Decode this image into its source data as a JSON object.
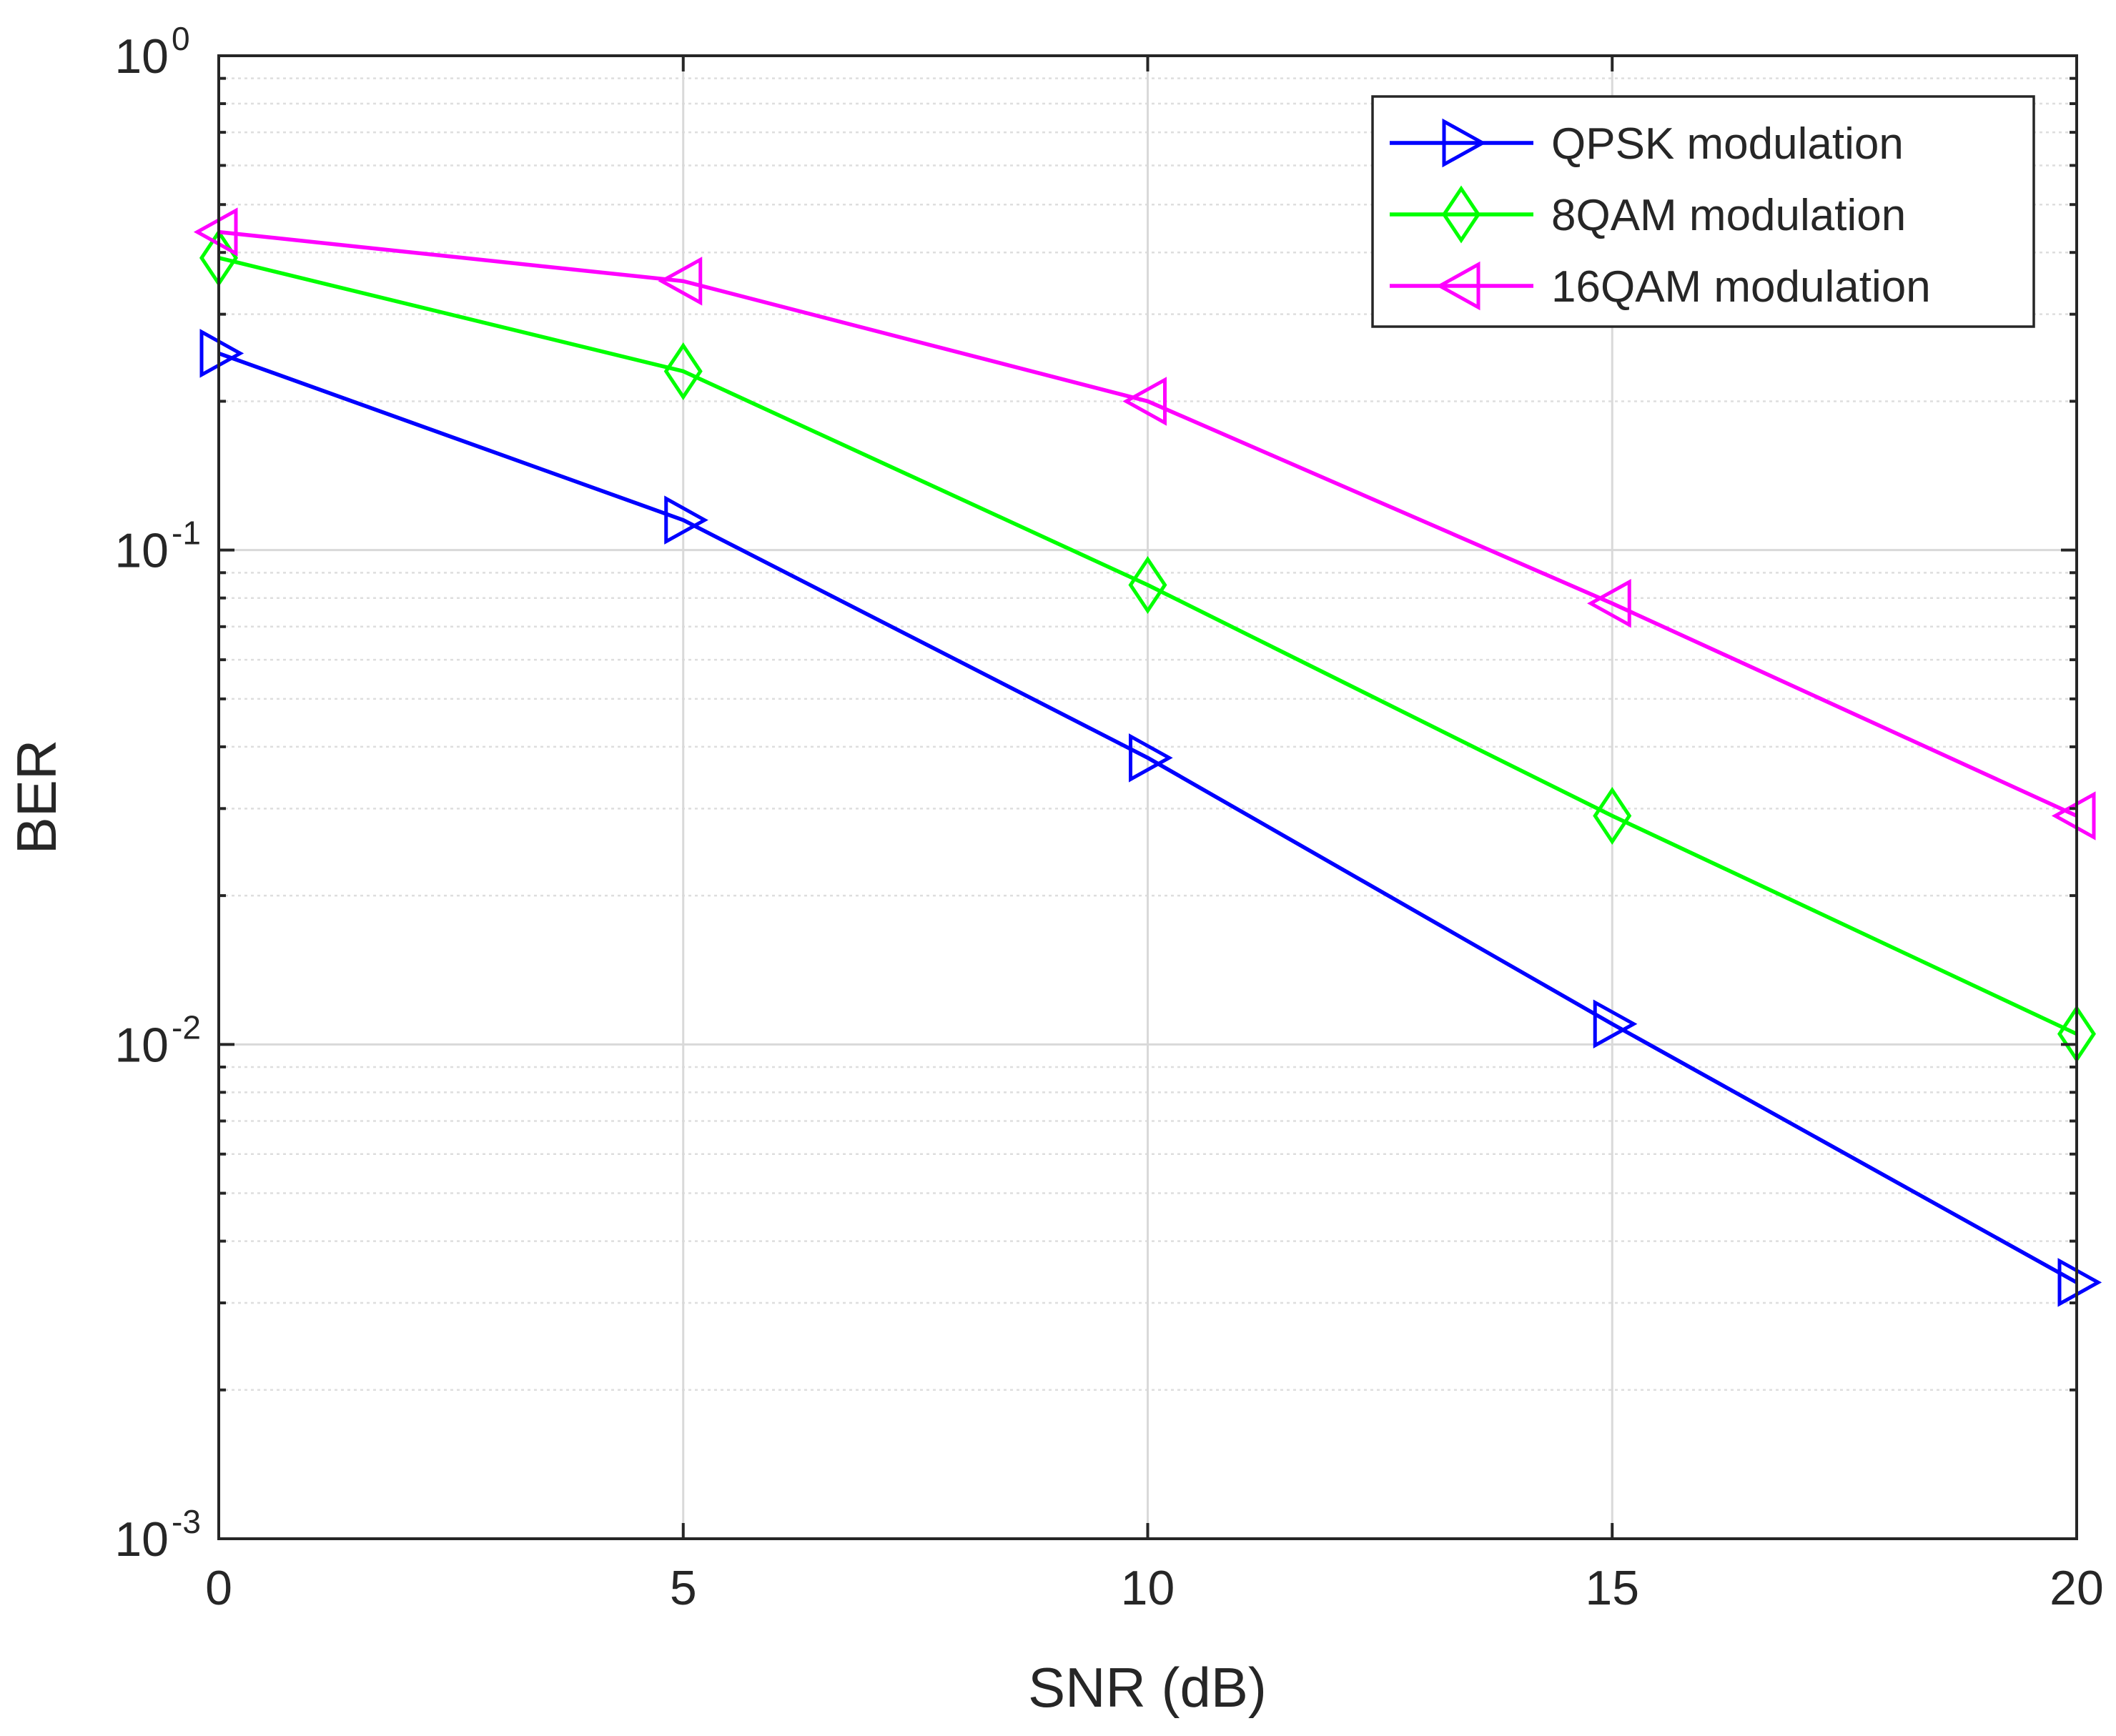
{
  "chart_data": {
    "type": "line",
    "title": "",
    "xlabel": "SNR (dB)",
    "ylabel": "BER",
    "xlim": [
      0,
      20
    ],
    "ylim": [
      0.001,
      1
    ],
    "yscale": "log",
    "grid": true,
    "legend_position": "top-right",
    "x": [
      0,
      5,
      10,
      15,
      20
    ],
    "x_ticks": [
      "0",
      "5",
      "10",
      "15",
      "20"
    ],
    "y_ticks": [
      {
        "base": "10",
        "exp": "0",
        "value": 1
      },
      {
        "base": "10",
        "exp": "-1",
        "value": 0.1
      },
      {
        "base": "10",
        "exp": "-2",
        "value": 0.01
      },
      {
        "base": "10",
        "exp": "-3",
        "value": 0.001
      }
    ],
    "series": [
      {
        "name": "QPSK modulation",
        "color": "#0000ff",
        "marker": "triangle-right",
        "values": [
          0.25,
          0.115,
          0.038,
          0.011,
          0.0033
        ]
      },
      {
        "name": "8QAM modulation",
        "color": "#00ff00",
        "marker": "diamond",
        "values": [
          0.39,
          0.23,
          0.085,
          0.029,
          0.0105
        ]
      },
      {
        "name": "16QAM modulation",
        "color": "#ff00ff",
        "marker": "triangle-left",
        "values": [
          0.44,
          0.35,
          0.2,
          0.078,
          0.029
        ]
      }
    ]
  }
}
